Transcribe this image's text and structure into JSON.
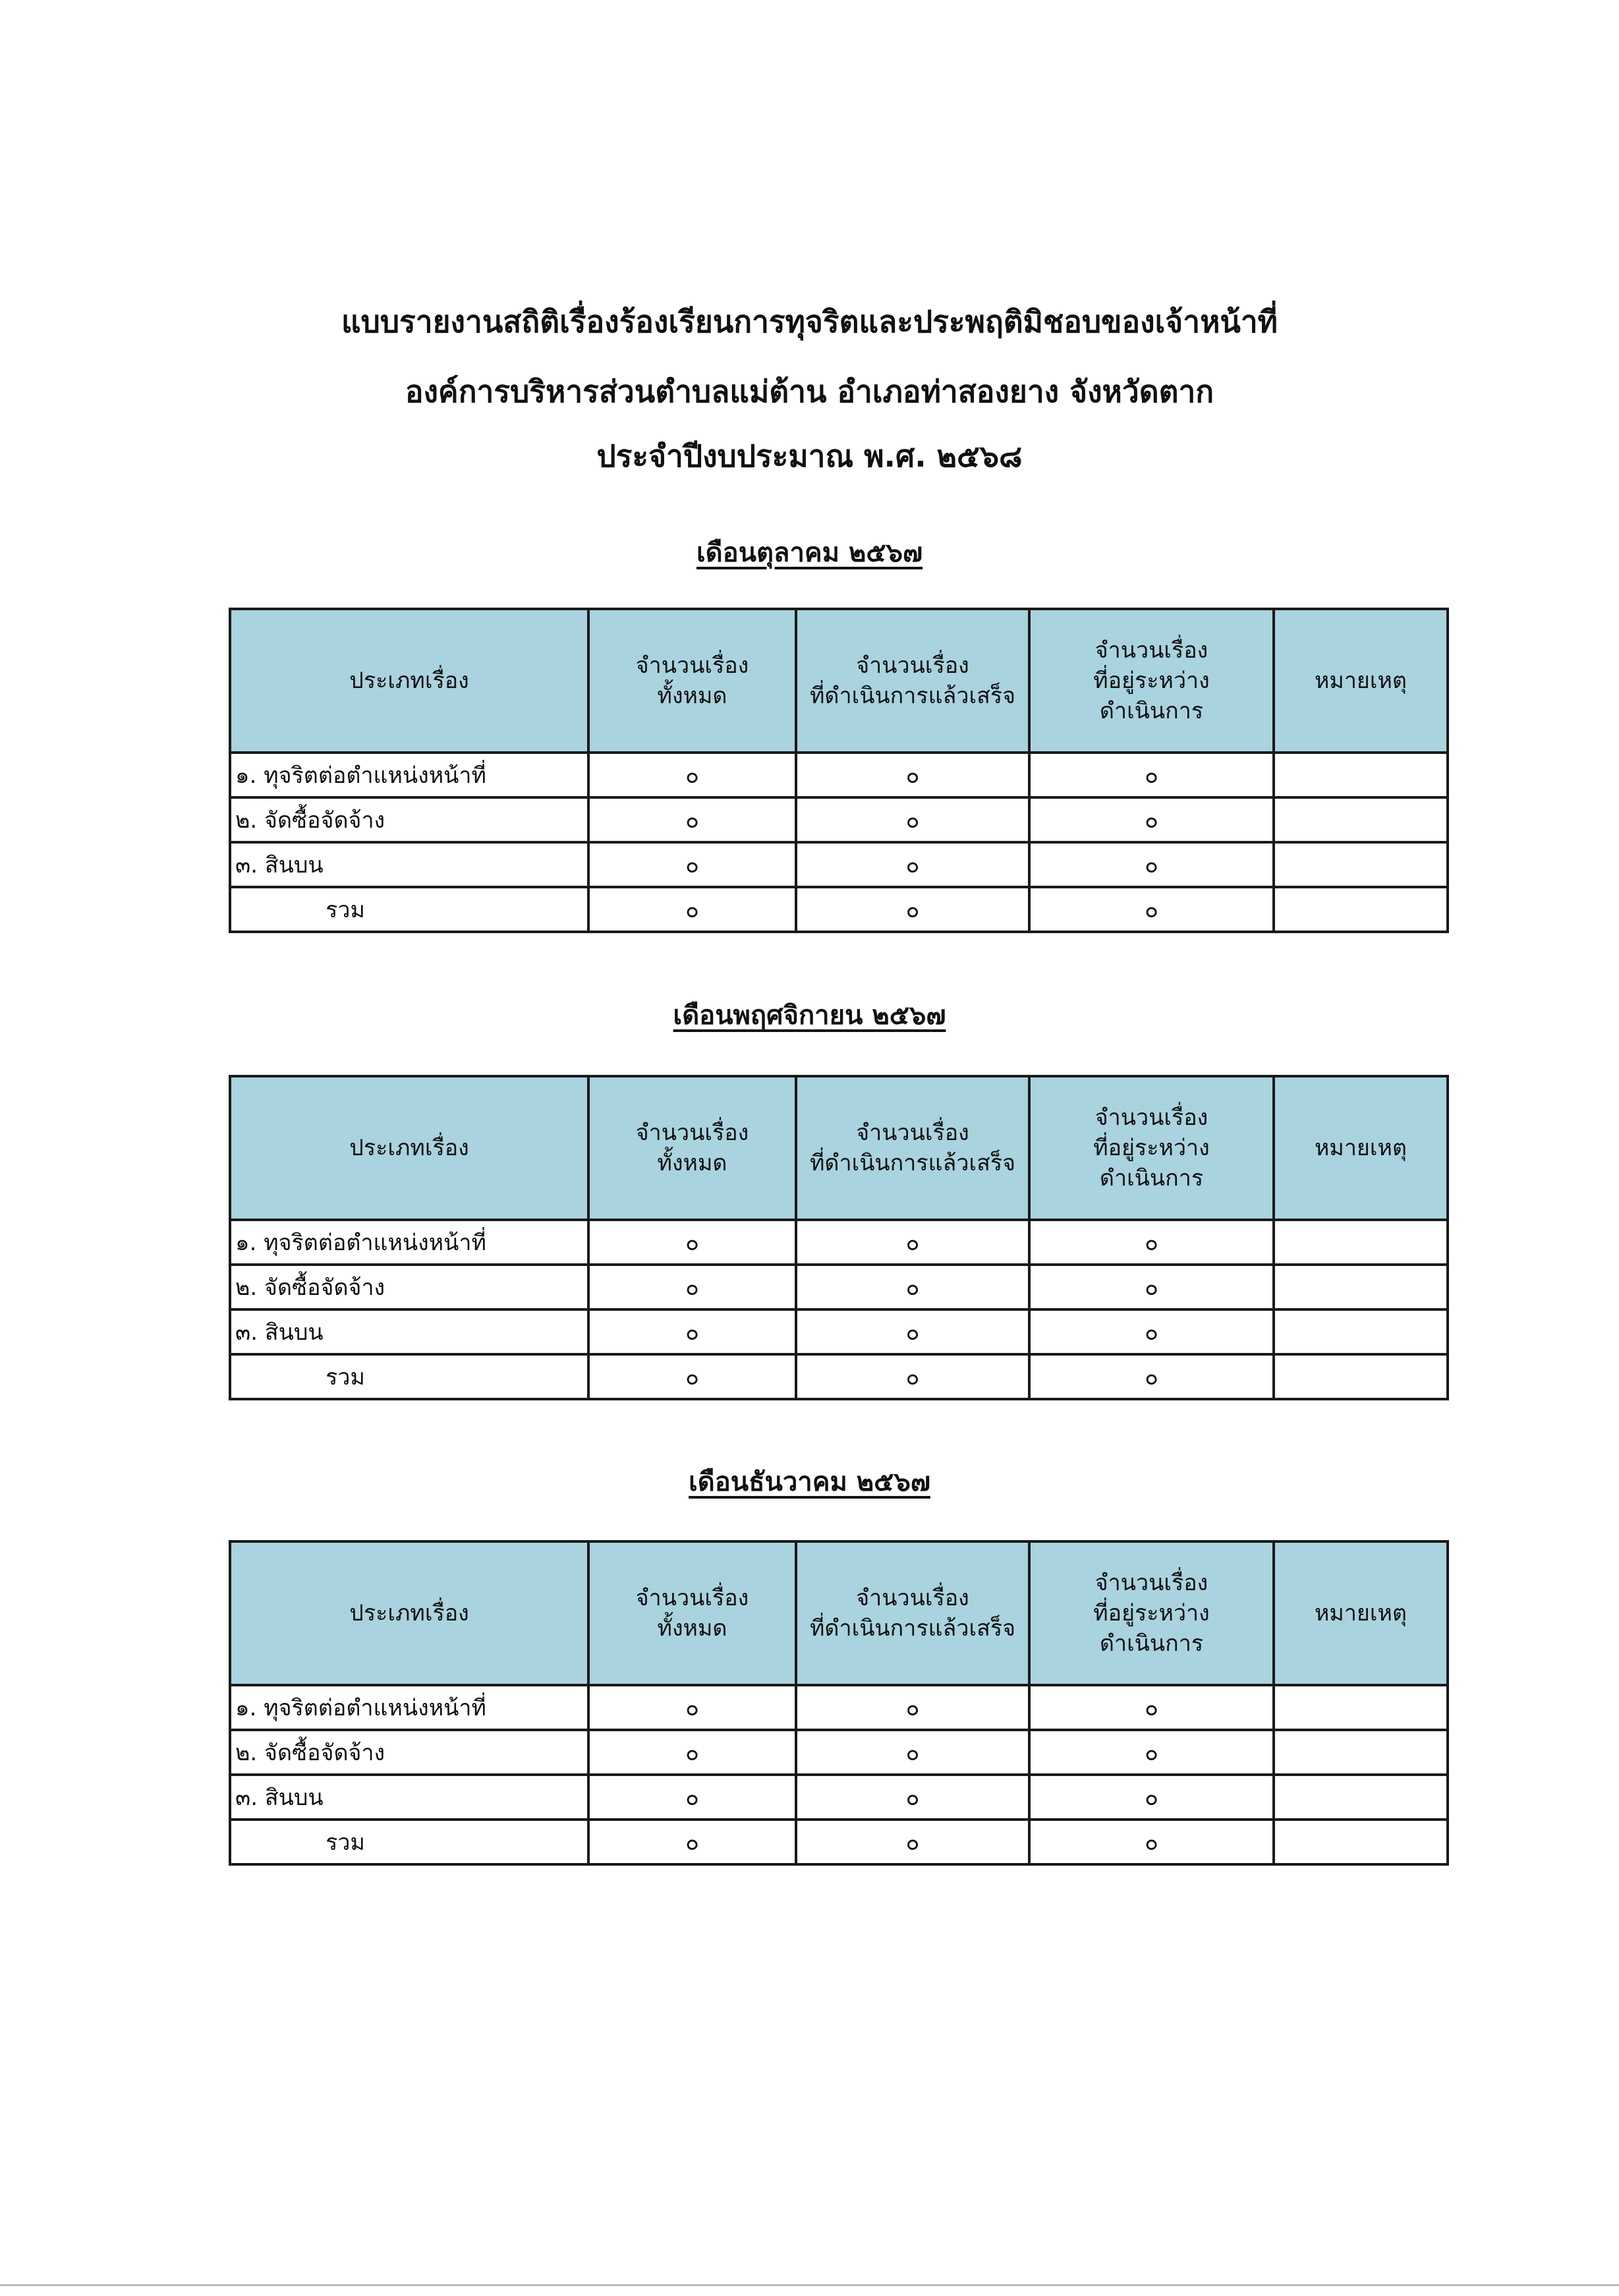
{
  "title_lines": [
    "แบบรายงานสถิติเรื่องร้องเรียนการทุจริตและประพฤติมิชอบของเจ้าหน้าที่",
    "องค์การบริหารส่วนตำบลแม่ต้าน อำเภอท่าสองยาง จังหวัดตาก",
    "ประจำปีงบประมาณ พ.ศ. ๒๕๖๘"
  ],
  "header_color": "#a9d3df",
  "columns": [
    "ประเภทเรื่อง",
    "จำนวนเรื่อง\nทั้งหมด",
    "จำนวนเรื่อง\nที่ดำเนินการแล้วเสร็จ",
    "จำนวนเรื่อง\nที่อยู่ระหว่าง\nดำเนินการ",
    "หมายเหตุ"
  ],
  "sections": [
    {
      "month": "เดือนตุลาคม ๒๕๖๗",
      "rows": [
        {
          "type": "๑. ทุจริตต่อตำแหน่งหน้าที่",
          "total": "๐",
          "done": "๐",
          "pending": "๐",
          "note": ""
        },
        {
          "type": "๒. จัดซื้อจัดจ้าง",
          "total": "๐",
          "done": "๐",
          "pending": "๐",
          "note": ""
        },
        {
          "type": "๓. สินบน",
          "total": "๐",
          "done": "๐",
          "pending": "๐",
          "note": ""
        },
        {
          "type": "รวม",
          "total": "๐",
          "done": "๐",
          "pending": "๐",
          "note": ""
        }
      ]
    },
    {
      "month": "เดือนพฤศจิกายน ๒๕๖๗",
      "rows": [
        {
          "type": "๑. ทุจริตต่อตำแหน่งหน้าที่",
          "total": "๐",
          "done": "๐",
          "pending": "๐",
          "note": ""
        },
        {
          "type": "๒. จัดซื้อจัดจ้าง",
          "total": "๐",
          "done": "๐",
          "pending": "๐",
          "note": ""
        },
        {
          "type": "๓. สินบน",
          "total": "๐",
          "done": "๐",
          "pending": "๐",
          "note": ""
        },
        {
          "type": "รวม",
          "total": "๐",
          "done": "๐",
          "pending": "๐",
          "note": ""
        }
      ]
    },
    {
      "month": "เดือนธันวาคม ๒๕๖๗",
      "rows": [
        {
          "type": "๑. ทุจริตต่อตำแหน่งหน้าที่",
          "total": "๐",
          "done": "๐",
          "pending": "๐",
          "note": ""
        },
        {
          "type": "๒. จัดซื้อจัดจ้าง",
          "total": "๐",
          "done": "๐",
          "pending": "๐",
          "note": ""
        },
        {
          "type": "๓. สินบน",
          "total": "๐",
          "done": "๐",
          "pending": "๐",
          "note": ""
        },
        {
          "type": "รวม",
          "total": "๐",
          "done": "๐",
          "pending": "๐",
          "note": ""
        }
      ]
    }
  ]
}
